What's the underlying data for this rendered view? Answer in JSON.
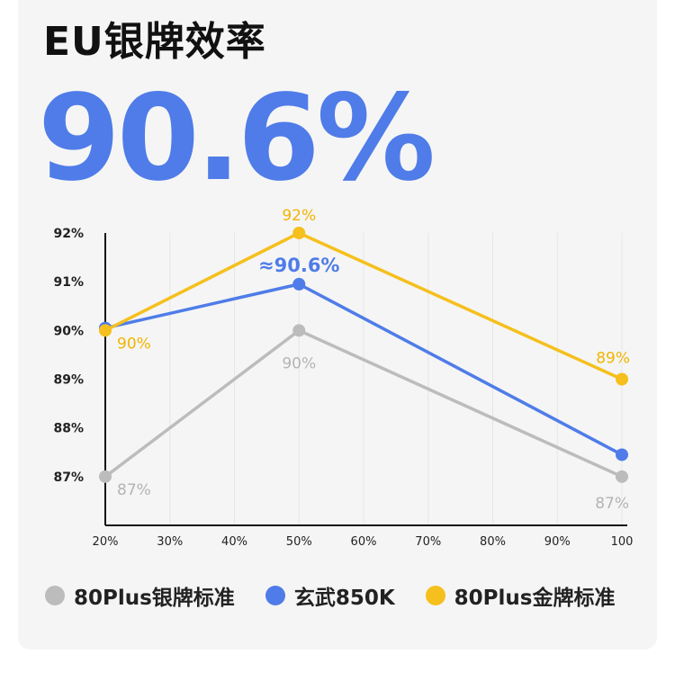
{
  "title": "EU银牌效率",
  "headline": {
    "value": "90.6%",
    "color": "#4f7ce8"
  },
  "chart_data": {
    "type": "line",
    "x_tick_labels": [
      "20%",
      "30%",
      "40%",
      "50%",
      "60%",
      "70%",
      "80%",
      "90%",
      "100"
    ],
    "y_tick_labels": [
      "92%",
      "91%",
      "90%",
      "89%",
      "88%",
      "87%"
    ],
    "ylim": [
      86,
      92
    ],
    "grid": false,
    "legend_position": "bottom",
    "series": [
      {
        "name": "80Plus银牌标准",
        "color": "#bcbcbc",
        "label_color": "#b4b4b4",
        "points": [
          {
            "x": 20,
            "y": 87,
            "label": "87%",
            "label_pos": "right-below"
          },
          {
            "x": 50,
            "y": 90,
            "label": "90%",
            "label_pos": "below"
          },
          {
            "x": 100,
            "y": 87,
            "label": "87%",
            "label_pos": "below-left"
          }
        ]
      },
      {
        "name": "玄武850K",
        "color": "#4f7ce8",
        "label_color": "#4f7ce8",
        "points": [
          {
            "x": 20,
            "y": 90.05
          },
          {
            "x": 50,
            "y": 90.95,
            "label": "≈90.6%",
            "label_pos": "above",
            "bold": true
          },
          {
            "x": 100,
            "y": 87.45
          }
        ]
      },
      {
        "name": "80Plus金牌标准",
        "color": "#f5c01d",
        "label_color": "#f1b500",
        "points": [
          {
            "x": 20,
            "y": 90,
            "label": "90%",
            "label_pos": "right-below"
          },
          {
            "x": 50,
            "y": 92,
            "label": "92%",
            "label_pos": "above"
          },
          {
            "x": 100,
            "y": 89,
            "label": "89%",
            "label_pos": "above-left"
          }
        ]
      }
    ]
  }
}
